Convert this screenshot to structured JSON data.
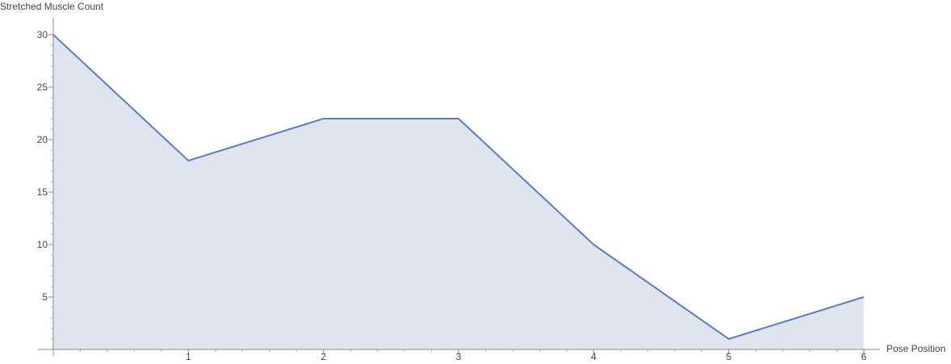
{
  "chart_data": {
    "type": "area",
    "title": "",
    "xlabel": "Pose Position",
    "ylabel": "Stretched Muscle Count",
    "x": [
      0,
      1,
      2,
      3,
      4,
      5,
      6
    ],
    "series": [
      {
        "values": [
          30,
          18,
          22,
          22,
          10,
          1,
          5
        ]
      }
    ],
    "xlim": [
      0,
      6
    ],
    "ylim": [
      0,
      30
    ],
    "x_ticks": [
      "1",
      "2",
      "3",
      "4",
      "5",
      "6"
    ],
    "y_ticks": [
      "5",
      "10",
      "15",
      "20",
      "25",
      "30"
    ],
    "grid": false,
    "legend": "none",
    "colors": {
      "line": "#5b7fb8",
      "fill": "#dfe4ef",
      "axis": "#888888",
      "text": "#444444"
    }
  }
}
